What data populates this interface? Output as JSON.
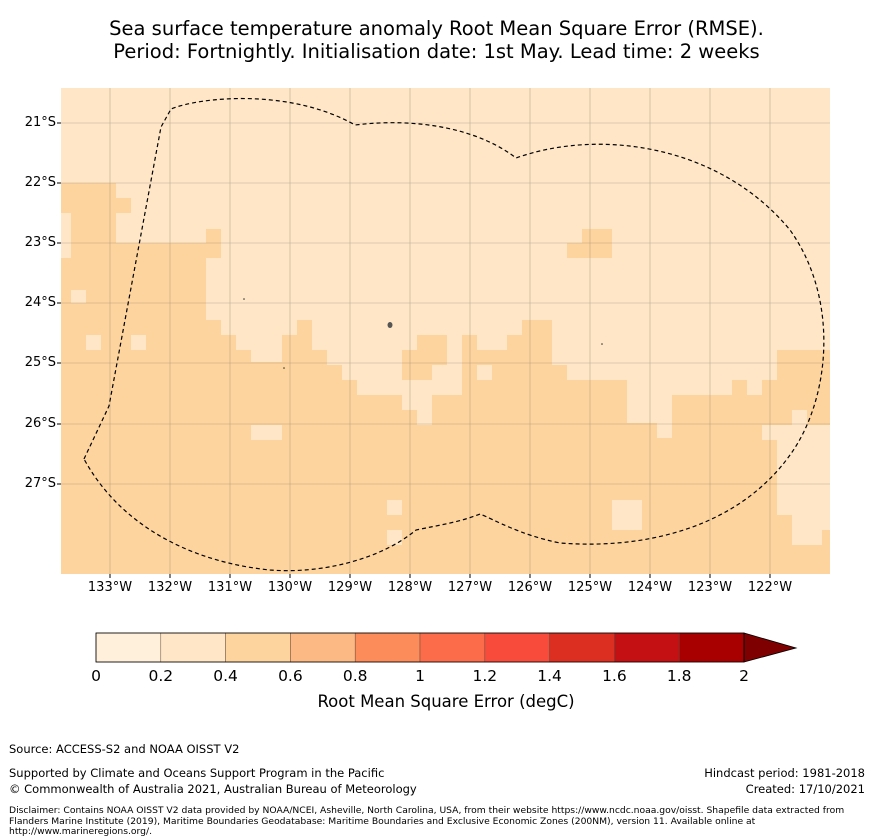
{
  "title": {
    "line1": "Sea surface temperature anomaly Root Mean Square Error (RMSE).",
    "line2": "Period: Fortnightly. Initialisation date: 1st May. Lead time: 2 weeks"
  },
  "map": {
    "lat_ticks": [
      "21°S",
      "22°S",
      "23°S",
      "24°S",
      "25°S",
      "26°S",
      "27°S"
    ],
    "lon_ticks": [
      "133°W",
      "132°W",
      "131°W",
      "130°W",
      "129°W",
      "128°W",
      "127°W",
      "126°W",
      "125°W",
      "124°W",
      "123°W",
      "122°W"
    ],
    "boundary_style": "dashed",
    "regions": {
      "light_fill_color": "#fee6c6",
      "mid_fill_color": "#fdd49e",
      "lightest_fill_color": "#fff1de"
    }
  },
  "colorbar": {
    "label": "Root Mean Square Error (degC)",
    "ticks": [
      "0",
      "0.2",
      "0.4",
      "0.6",
      "0.8",
      "1",
      "1.2",
      "1.4",
      "1.6",
      "1.8",
      "2"
    ],
    "colors": [
      "#fff0dc",
      "#fee6c6",
      "#fdd49e",
      "#fdb984",
      "#fc8c59",
      "#fd6c4a",
      "#f94b3b",
      "#dd2f21",
      "#c40f13",
      "#a80000",
      "#7f0000"
    ],
    "extend": "max"
  },
  "footer": {
    "source": "Source: ACCESS-S2 and NOAA OISST V2",
    "supported": "Supported by Climate and Oceans Support Program in the Pacific",
    "copyright": "© Commonwealth of Australia 2021, Australian Bureau of Meteorology",
    "hindcast": "Hindcast period: 1981-2018",
    "created": "Created: 17/10/2021",
    "disclaimer": "Disclaimer: Contains NOAA OISST V2 data provided by NOAA/NCEI, Asheville, North Carolina, USA, from their website https://www.ncdc.noaa.gov/oisst. Shapefile data extracted from Flanders Marine Institute (2019), Maritime Boundaries Geodatabase: Maritime Boundaries and Exclusive Economic Zones (200NM), version 11. Available online at http://www.marineregions.org/."
  }
}
